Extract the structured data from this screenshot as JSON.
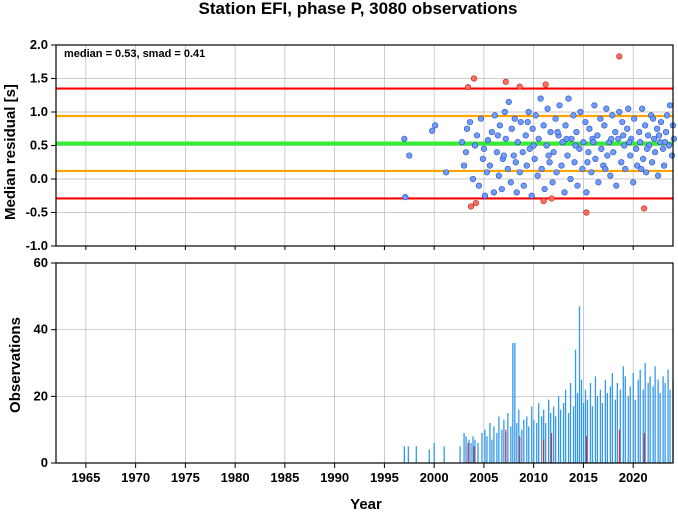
{
  "chart_data": [
    {
      "type": "scatter",
      "title": "Station EFI, phase P, 3080 observations",
      "ylabel": "Median residual [s]",
      "xlim": [
        1962,
        2024
      ],
      "ylim": [
        -1.0,
        2.0
      ],
      "yticks": [
        "2.0",
        "1.5",
        "1.0",
        "0.5",
        "0.0",
        "-0.5",
        "-1.0"
      ],
      "annotation": "median = 0.53, smad = 0.41",
      "grid": true,
      "colors": {
        "inlier": "#6f9bff",
        "outlier": "#ff6b5c",
        "median_line": "#33ee33",
        "smad_line": "#ffa500",
        "limit_line": "#ff0000"
      },
      "reference_lines": [
        {
          "role": "median",
          "value": 0.53,
          "color": "#33ee33"
        },
        {
          "role": "smad",
          "value": 0.94,
          "color": "#ffa500"
        },
        {
          "role": "smad",
          "value": 0.12,
          "color": "#ffa500"
        },
        {
          "role": "limit",
          "value": 1.35,
          "color": "#ff0000"
        },
        {
          "role": "limit",
          "value": -0.29,
          "color": "#ff0000"
        }
      ],
      "points": [
        [
          1997.1,
          -0.27
        ],
        [
          1997.0,
          0.6
        ],
        [
          1997.5,
          0.35
        ],
        [
          1999.8,
          0.72
        ],
        [
          2000.1,
          0.8
        ],
        [
          2001.2,
          0.1
        ],
        [
          2002.8,
          0.55
        ],
        [
          2003.0,
          0.2
        ],
        [
          2003.2,
          0.4
        ],
        [
          2003.3,
          0.75
        ],
        [
          2003.6,
          0.85
        ],
        [
          2003.9,
          0.0
        ],
        [
          2004.1,
          0.5
        ],
        [
          2004.3,
          0.65
        ],
        [
          2004.5,
          -0.1
        ],
        [
          2004.7,
          0.9
        ],
        [
          2004.9,
          0.3
        ],
        [
          2005.1,
          -0.25
        ],
        [
          2005.3,
          0.1
        ],
        [
          2005.4,
          0.58
        ],
        [
          2005.6,
          0.2
        ],
        [
          2005.8,
          0.7
        ],
        [
          2006.0,
          -0.2
        ],
        [
          2006.1,
          0.95
        ],
        [
          2006.3,
          0.4
        ],
        [
          2006.5,
          0.05
        ],
        [
          2006.6,
          0.8
        ],
        [
          2006.8,
          -0.15
        ],
        [
          2006.9,
          0.3
        ],
        [
          2007.1,
          1.0
        ],
        [
          2007.2,
          0.6
        ],
        [
          2007.4,
          0.15
        ],
        [
          2007.5,
          1.15
        ],
        [
          2007.7,
          -0.05
        ],
        [
          2007.8,
          0.75
        ],
        [
          2008.0,
          0.35
        ],
        [
          2008.1,
          0.9
        ],
        [
          2008.3,
          -0.2
        ],
        [
          2008.4,
          0.55
        ],
        [
          2008.6,
          0.1
        ],
        [
          2008.7,
          0.85
        ],
        [
          2008.9,
          0.4
        ],
        [
          2009.0,
          -0.1
        ],
        [
          2009.2,
          0.65
        ],
        [
          2009.3,
          0.2
        ],
        [
          2009.5,
          1.0
        ],
        [
          2009.6,
          0.45
        ],
        [
          2009.8,
          -0.25
        ],
        [
          2009.9,
          0.75
        ],
        [
          2010.1,
          0.3
        ],
        [
          2010.2,
          0.95
        ],
        [
          2010.4,
          0.05
        ],
        [
          2010.5,
          0.6
        ],
        [
          2010.7,
          1.2
        ],
        [
          2010.8,
          0.15
        ],
        [
          2011.0,
          0.8
        ],
        [
          2011.1,
          -0.15
        ],
        [
          2011.3,
          0.5
        ],
        [
          2011.4,
          1.05
        ],
        [
          2011.6,
          0.25
        ],
        [
          2011.7,
          0.7
        ],
        [
          2011.9,
          -0.05
        ],
        [
          2012.0,
          0.4
        ],
        [
          2012.2,
          0.9
        ],
        [
          2012.3,
          0.1
        ],
        [
          2012.5,
          0.65
        ],
        [
          2012.6,
          1.1
        ],
        [
          2012.8,
          0.2
        ],
        [
          2012.9,
          0.55
        ],
        [
          2013.1,
          -0.2
        ],
        [
          2013.2,
          0.8
        ],
        [
          2013.4,
          0.35
        ],
        [
          2013.5,
          1.2
        ],
        [
          2013.7,
          0.0
        ],
        [
          2013.8,
          0.6
        ],
        [
          2014.0,
          0.95
        ],
        [
          2014.1,
          0.25
        ],
        [
          2014.3,
          0.7
        ],
        [
          2014.4,
          -0.1
        ],
        [
          2014.6,
          0.45
        ],
        [
          2014.7,
          1.0
        ],
        [
          2014.9,
          0.15
        ],
        [
          2015.0,
          0.55
        ],
        [
          2015.2,
          0.85
        ],
        [
          2015.3,
          -0.2
        ],
        [
          2015.5,
          0.4
        ],
        [
          2015.6,
          0.75
        ],
        [
          2015.8,
          0.1
        ],
        [
          2015.9,
          0.6
        ],
        [
          2016.1,
          1.1
        ],
        [
          2016.2,
          0.3
        ],
        [
          2016.4,
          0.65
        ],
        [
          2016.5,
          -0.05
        ],
        [
          2016.7,
          0.9
        ],
        [
          2016.8,
          0.45
        ],
        [
          2017.0,
          0.2
        ],
        [
          2017.1,
          0.8
        ],
        [
          2017.3,
          1.05
        ],
        [
          2017.4,
          0.35
        ],
        [
          2017.6,
          0.55
        ],
        [
          2017.7,
          0.05
        ],
        [
          2017.9,
          0.95
        ],
        [
          2018.0,
          0.4
        ],
        [
          2018.2,
          0.7
        ],
        [
          2018.3,
          -0.1
        ],
        [
          2018.5,
          0.6
        ],
        [
          2018.6,
          1.0
        ],
        [
          2018.8,
          0.25
        ],
        [
          2018.9,
          0.85
        ],
        [
          2019.1,
          0.5
        ],
        [
          2019.2,
          0.15
        ],
        [
          2019.4,
          0.75
        ],
        [
          2019.5,
          1.05
        ],
        [
          2019.7,
          0.35
        ],
        [
          2019.8,
          0.6
        ],
        [
          2020.0,
          -0.05
        ],
        [
          2020.1,
          0.9
        ],
        [
          2020.3,
          0.45
        ],
        [
          2020.4,
          0.2
        ],
        [
          2020.6,
          0.7
        ],
        [
          2020.7,
          0.55
        ],
        [
          2020.9,
          1.05
        ],
        [
          2021.0,
          0.3
        ],
        [
          2021.2,
          0.8
        ],
        [
          2021.3,
          0.1
        ],
        [
          2021.5,
          0.65
        ],
        [
          2021.6,
          0.5
        ],
        [
          2021.8,
          0.95
        ],
        [
          2021.9,
          0.25
        ],
        [
          2022.1,
          0.6
        ],
        [
          2022.2,
          0.4
        ],
        [
          2022.4,
          0.75
        ],
        [
          2022.5,
          0.05
        ],
        [
          2022.7,
          0.55
        ],
        [
          2022.8,
          0.85
        ],
        [
          2023.0,
          0.45
        ],
        [
          2023.1,
          0.2
        ],
        [
          2023.3,
          0.7
        ],
        [
          2023.4,
          0.95
        ],
        [
          2023.6,
          0.5
        ],
        [
          2023.7,
          1.1
        ],
        [
          2023.9,
          0.35
        ],
        [
          2024.0,
          0.8
        ],
        [
          2024.1,
          0.6
        ],
        [
          2006.4,
          0.65
        ],
        [
          2008.2,
          0.25
        ],
        [
          2010.0,
          0.5
        ],
        [
          2012.4,
          0.7
        ],
        [
          2014.2,
          0.5
        ],
        [
          2016.0,
          0.55
        ],
        [
          2017.8,
          0.6
        ],
        [
          2019.6,
          0.55
        ],
        [
          2021.4,
          0.45
        ],
        [
          2022.6,
          0.65
        ],
        [
          2023.2,
          0.55
        ],
        [
          2005.0,
          0.45
        ],
        [
          2007.0,
          0.35
        ],
        [
          2009.4,
          0.85
        ],
        [
          2011.5,
          0.35
        ],
        [
          2013.3,
          0.6
        ],
        [
          2015.4,
          0.25
        ],
        [
          2017.2,
          0.15
        ],
        [
          2019.0,
          0.65
        ],
        [
          2020.8,
          0.15
        ],
        [
          2022.0,
          0.9
        ]
      ],
      "outliers": [
        [
          2003.4,
          1.37
        ],
        [
          2004.0,
          1.5
        ],
        [
          2007.2,
          1.45
        ],
        [
          2008.6,
          1.38
        ],
        [
          2011.2,
          1.41
        ],
        [
          2018.6,
          1.83
        ],
        [
          2003.7,
          -0.41
        ],
        [
          2004.2,
          -0.36
        ],
        [
          2011.0,
          -0.33
        ],
        [
          2011.8,
          -0.29
        ],
        [
          2015.3,
          -0.5
        ],
        [
          2021.1,
          -0.44
        ]
      ]
    },
    {
      "type": "bar",
      "xlabel": "Year",
      "ylabel": "Observations",
      "xlim": [
        1962,
        2024
      ],
      "ylim": [
        0,
        60
      ],
      "yticks": [
        "60",
        "40",
        "20",
        "0"
      ],
      "xticks": [
        "1965",
        "1970",
        "1975",
        "1980",
        "1985",
        "1990",
        "1995",
        "2000",
        "2005",
        "2010",
        "2015",
        "2020"
      ],
      "grid": true,
      "colors": {
        "bars": "#3399ee",
        "outlier_bars": "#dd2222"
      },
      "bars": [
        [
          1997.0,
          5
        ],
        [
          1997.4,
          5
        ],
        [
          1998.2,
          5
        ],
        [
          1999.5,
          4
        ],
        [
          2000.0,
          6
        ],
        [
          2001.0,
          5
        ],
        [
          2002.6,
          5
        ],
        [
          2003.0,
          9
        ],
        [
          2003.2,
          8
        ],
        [
          2003.5,
          7
        ],
        [
          2003.7,
          6
        ],
        [
          2003.9,
          8
        ],
        [
          2004.1,
          7
        ],
        [
          2004.4,
          6
        ],
        [
          2004.8,
          9
        ],
        [
          2005.1,
          10
        ],
        [
          2005.3,
          8
        ],
        [
          2005.6,
          12
        ],
        [
          2005.8,
          7
        ],
        [
          2006.0,
          11
        ],
        [
          2006.3,
          9
        ],
        [
          2006.5,
          14
        ],
        [
          2006.8,
          10
        ],
        [
          2007.0,
          13
        ],
        [
          2007.2,
          9
        ],
        [
          2007.4,
          15
        ],
        [
          2007.7,
          11
        ],
        [
          2007.9,
          36
        ],
        [
          2008.1,
          36
        ],
        [
          2008.3,
          12
        ],
        [
          2008.5,
          16
        ],
        [
          2008.8,
          10
        ],
        [
          2009.0,
          13
        ],
        [
          2009.3,
          14
        ],
        [
          2009.5,
          11
        ],
        [
          2009.8,
          17
        ],
        [
          2010.0,
          13
        ],
        [
          2010.3,
          12
        ],
        [
          2010.5,
          18
        ],
        [
          2010.8,
          14
        ],
        [
          2011.0,
          16
        ],
        [
          2011.2,
          12
        ],
        [
          2011.5,
          19
        ],
        [
          2011.7,
          15
        ],
        [
          2012.0,
          17
        ],
        [
          2012.2,
          14
        ],
        [
          2012.5,
          20
        ],
        [
          2012.7,
          16
        ],
        [
          2013.0,
          18
        ],
        [
          2013.2,
          22
        ],
        [
          2013.5,
          15
        ],
        [
          2013.7,
          24
        ],
        [
          2014.0,
          17
        ],
        [
          2014.2,
          34
        ],
        [
          2014.4,
          21
        ],
        [
          2014.6,
          47
        ],
        [
          2014.8,
          25
        ],
        [
          2015.0,
          18
        ],
        [
          2015.2,
          22
        ],
        [
          2015.4,
          19
        ],
        [
          2015.7,
          24
        ],
        [
          2015.9,
          17
        ],
        [
          2016.2,
          26
        ],
        [
          2016.4,
          20
        ],
        [
          2016.7,
          22
        ],
        [
          2016.9,
          18
        ],
        [
          2017.2,
          25
        ],
        [
          2017.4,
          21
        ],
        [
          2017.7,
          23
        ],
        [
          2017.9,
          27
        ],
        [
          2018.2,
          19
        ],
        [
          2018.4,
          24
        ],
        [
          2018.7,
          22
        ],
        [
          2019.0,
          29
        ],
        [
          2019.2,
          26
        ],
        [
          2019.5,
          20
        ],
        [
          2019.7,
          23
        ],
        [
          2020.0,
          27
        ],
        [
          2020.2,
          19
        ],
        [
          2020.5,
          25
        ],
        [
          2020.7,
          28
        ],
        [
          2021.0,
          22
        ],
        [
          2021.2,
          30
        ],
        [
          2021.5,
          24
        ],
        [
          2021.7,
          26
        ],
        [
          2022.0,
          23
        ],
        [
          2022.2,
          29
        ],
        [
          2022.5,
          25
        ],
        [
          2022.7,
          21
        ],
        [
          2023.0,
          26
        ],
        [
          2023.2,
          24
        ],
        [
          2023.5,
          28
        ],
        [
          2023.7,
          22
        ],
        [
          2024.0,
          25
        ]
      ],
      "outlier_bars": [
        [
          2003.4,
          6
        ],
        [
          2004.0,
          5
        ],
        [
          2007.2,
          10
        ],
        [
          2008.6,
          8
        ],
        [
          2011.0,
          7
        ],
        [
          2011.8,
          9
        ],
        [
          2015.3,
          8
        ],
        [
          2018.6,
          10
        ],
        [
          2021.1,
          9
        ]
      ]
    }
  ]
}
